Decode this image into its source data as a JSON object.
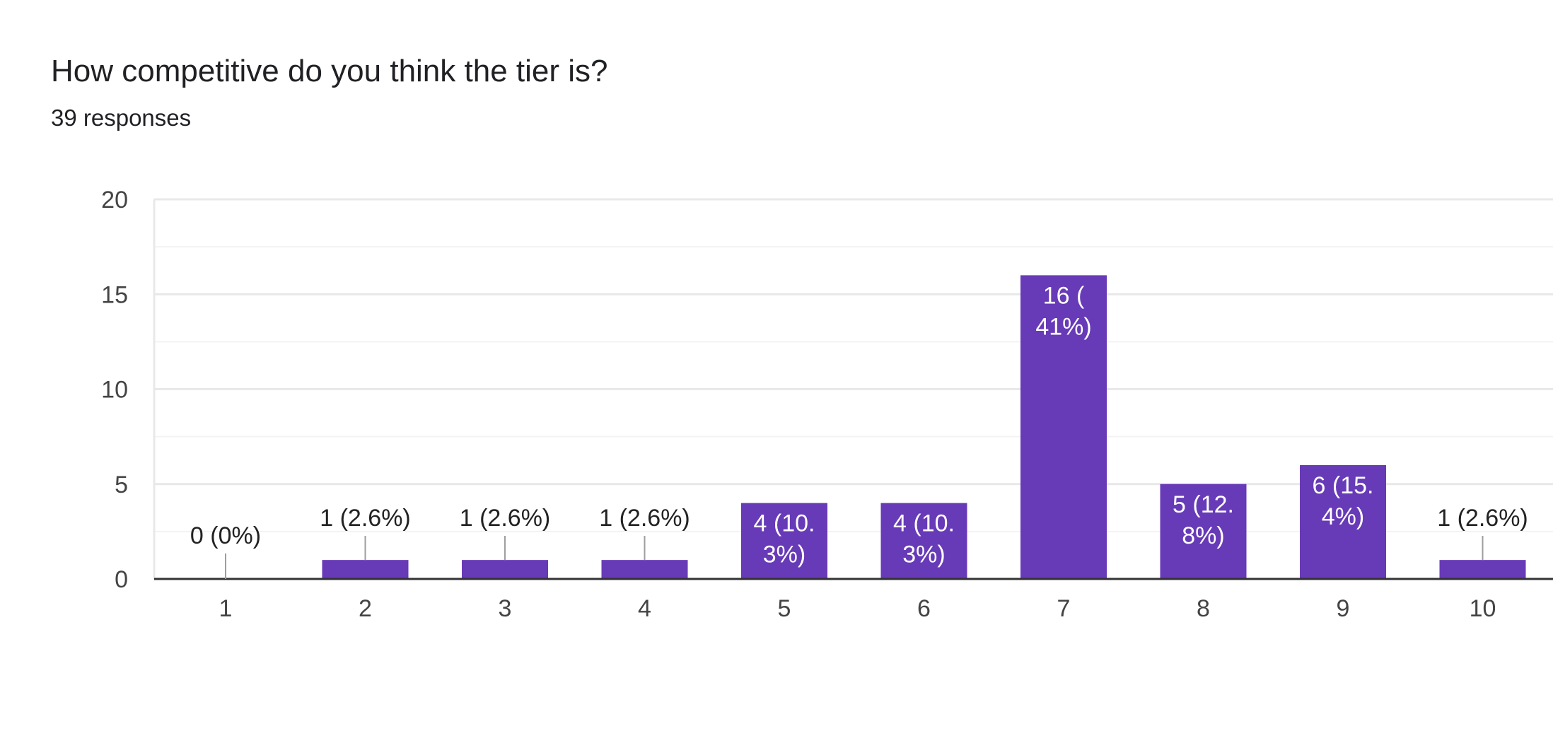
{
  "question": {
    "title": "How competitive do you think the tier is?",
    "responses": "39 responses"
  },
  "colors": {
    "bar": "#673ab7",
    "grid_major": "#e8e8e8",
    "grid_minor": "#f3f3f3",
    "axis": "#333333",
    "leader": "#9e9e9e",
    "label_outside": "#222222",
    "label_inside": "#ffffff"
  },
  "chart_data": {
    "type": "bar",
    "title": "How competitive do you think the tier is?",
    "subtitle": "39 responses",
    "xlabel": "",
    "ylabel": "",
    "categories": [
      "1",
      "2",
      "3",
      "4",
      "5",
      "6",
      "7",
      "8",
      "9",
      "10"
    ],
    "values": [
      0,
      1,
      1,
      1,
      4,
      4,
      16,
      5,
      6,
      1
    ],
    "labels": [
      [
        "0 (0%)"
      ],
      [
        "1 (2.6%)"
      ],
      [
        "1 (2.6%)"
      ],
      [
        "1 (2.6%)"
      ],
      [
        "4 (10.",
        "3%)"
      ],
      [
        "4 (10.",
        "3%)"
      ],
      [
        "16 (",
        "41%)"
      ],
      [
        "5 (12.",
        "8%)"
      ],
      [
        "6 (15.",
        "4%)"
      ],
      [
        "1 (2.6%)"
      ]
    ],
    "label_inside": [
      false,
      false,
      false,
      false,
      true,
      true,
      true,
      true,
      true,
      false
    ],
    "ylim": [
      0,
      20
    ],
    "yticks": [
      0,
      5,
      10,
      15,
      20
    ],
    "grid": true,
    "legend": "none"
  }
}
